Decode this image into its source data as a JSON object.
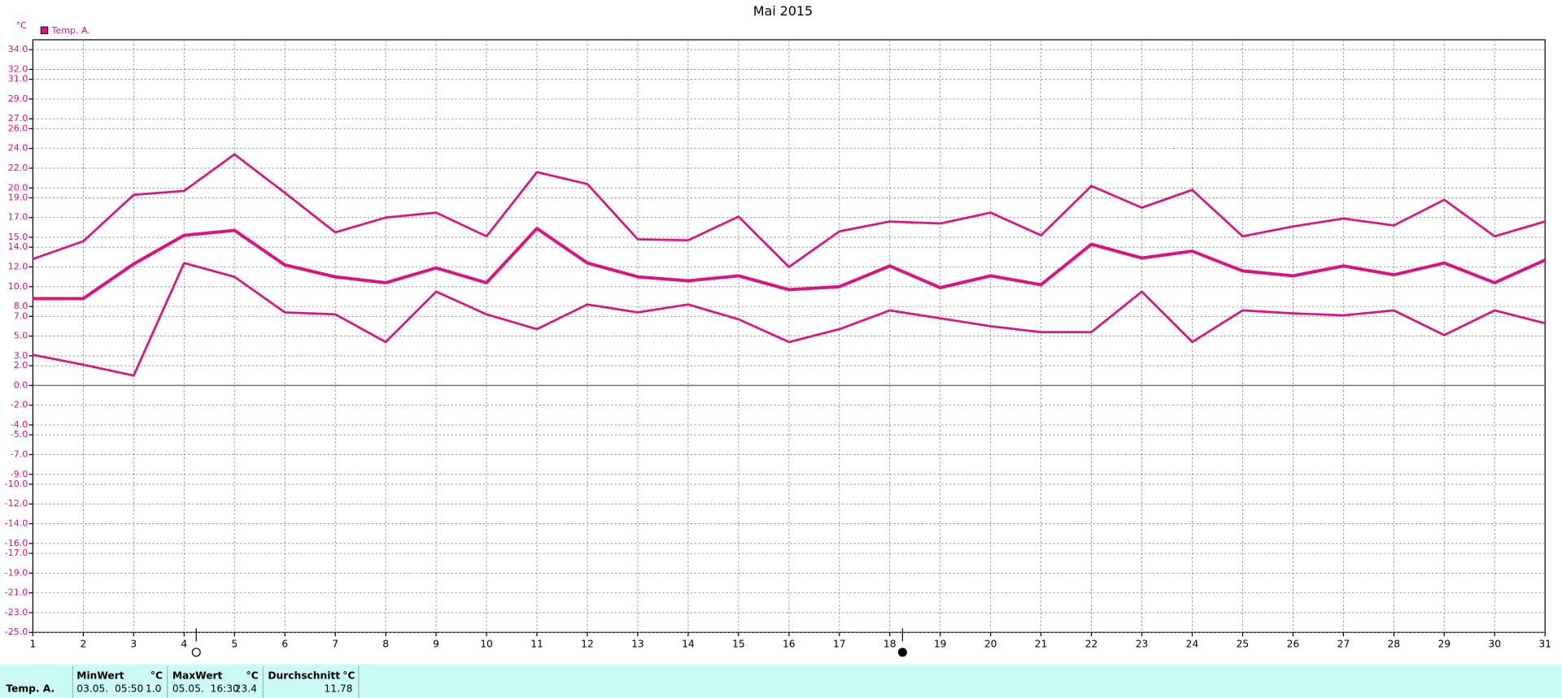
{
  "chart_data": {
    "type": "line",
    "title": "Mai 2015",
    "y_unit": "°C",
    "legend": {
      "label": "Temp. A.",
      "color": "#e0117f",
      "position": "top-left"
    },
    "categories": [
      "1",
      "2",
      "3",
      "4",
      "5",
      "6",
      "7",
      "8",
      "9",
      "10",
      "11",
      "12",
      "13",
      "14",
      "15",
      "16",
      "17",
      "18",
      "19",
      "20",
      "21",
      "22",
      "23",
      "24",
      "25",
      "26",
      "27",
      "28",
      "29",
      "30",
      "31"
    ],
    "series": [
      {
        "color": "#e0117f",
        "values": [
          12.8,
          14.6,
          19.3,
          19.7,
          23.4,
          19.5,
          15.5,
          17.0,
          17.5,
          15.1,
          21.6,
          20.4,
          14.8,
          14.7,
          17.1,
          12.0,
          15.6,
          16.6,
          16.4,
          17.5,
          15.2,
          20.2,
          18.0,
          19.8,
          15.1,
          16.1,
          16.9,
          16.2,
          18.8,
          15.1,
          16.6
        ]
      },
      {
        "color": "#e0117f",
        "values": [
          8.8,
          8.8,
          12.3,
          15.2,
          15.7,
          12.2,
          11.0,
          10.4,
          11.9,
          10.4,
          15.9,
          12.4,
          11.0,
          10.6,
          11.1,
          9.7,
          10.0,
          12.1,
          9.9,
          11.1,
          10.2,
          14.3,
          12.9,
          13.6,
          11.6,
          11.1,
          12.1,
          11.2,
          12.4,
          10.4,
          12.7
        ]
      },
      {
        "color": "#e0117f",
        "values": [
          3.1,
          2.1,
          1.0,
          12.4,
          11.0,
          7.4,
          7.2,
          4.4,
          9.5,
          7.2,
          5.7,
          8.2,
          7.4,
          8.2,
          6.7,
          4.4,
          5.7,
          7.6,
          6.8,
          6.0,
          5.4,
          5.4,
          9.5,
          4.4,
          7.6,
          7.3,
          7.1,
          7.6,
          5.1,
          7.6,
          6.3
        ]
      }
    ],
    "ylim": [
      -25,
      35
    ],
    "yticks": [
      {
        "value": 34,
        "label": "34.0"
      },
      {
        "value": 32,
        "label": "32.0"
      },
      {
        "value": 31,
        "label": "31.0"
      },
      {
        "value": 29,
        "label": "29.0"
      },
      {
        "value": 27,
        "label": "27.0"
      },
      {
        "value": 26,
        "label": "26.0"
      },
      {
        "value": 24,
        "label": "24.0"
      },
      {
        "value": 22,
        "label": "22.0"
      },
      {
        "value": 20,
        "label": "20.0"
      },
      {
        "value": 19,
        "label": "19.0"
      },
      {
        "value": 17,
        "label": "17.0"
      },
      {
        "value": 15,
        "label": "15.0"
      },
      {
        "value": 14,
        "label": "14.0"
      },
      {
        "value": 12,
        "label": "12.0"
      },
      {
        "value": 10,
        "label": "10.0"
      },
      {
        "value": 8,
        "label": "8.0"
      },
      {
        "value": 7,
        "label": "7.0"
      },
      {
        "value": 5,
        "label": "5.0"
      },
      {
        "value": 3,
        "label": "3.0"
      },
      {
        "value": 2,
        "label": "2.0"
      },
      {
        "value": 0,
        "label": "0.0"
      },
      {
        "value": -2,
        "label": "-2.0"
      },
      {
        "value": -4,
        "label": "-4.0"
      },
      {
        "value": -5,
        "label": "-5.0"
      },
      {
        "value": -7,
        "label": "-7.0"
      },
      {
        "value": -9,
        "label": "-9.0"
      },
      {
        "value": -10,
        "label": "-10.0"
      },
      {
        "value": -12,
        "label": "-12.0"
      },
      {
        "value": -14,
        "label": "-14.0"
      },
      {
        "value": -16,
        "label": "-16.0"
      },
      {
        "value": -17,
        "label": "-17.0"
      },
      {
        "value": -19,
        "label": "-19.0"
      },
      {
        "value": -21,
        "label": "-21.0"
      },
      {
        "value": -23,
        "label": "-23.0"
      },
      {
        "value": -25,
        "label": "-25.0"
      }
    ],
    "grid": true
  },
  "summary": {
    "headers": [
      "MinWert",
      "°C",
      "MaxWert",
      "°C",
      "Durchschnitt",
      "°C"
    ],
    "row": {
      "label": "Temp. A.",
      "min_time": "03.05.  05:50",
      "min": "1.0",
      "max_time": "05.05.  16:30",
      "max": "23.4",
      "avg": "11.78"
    }
  }
}
